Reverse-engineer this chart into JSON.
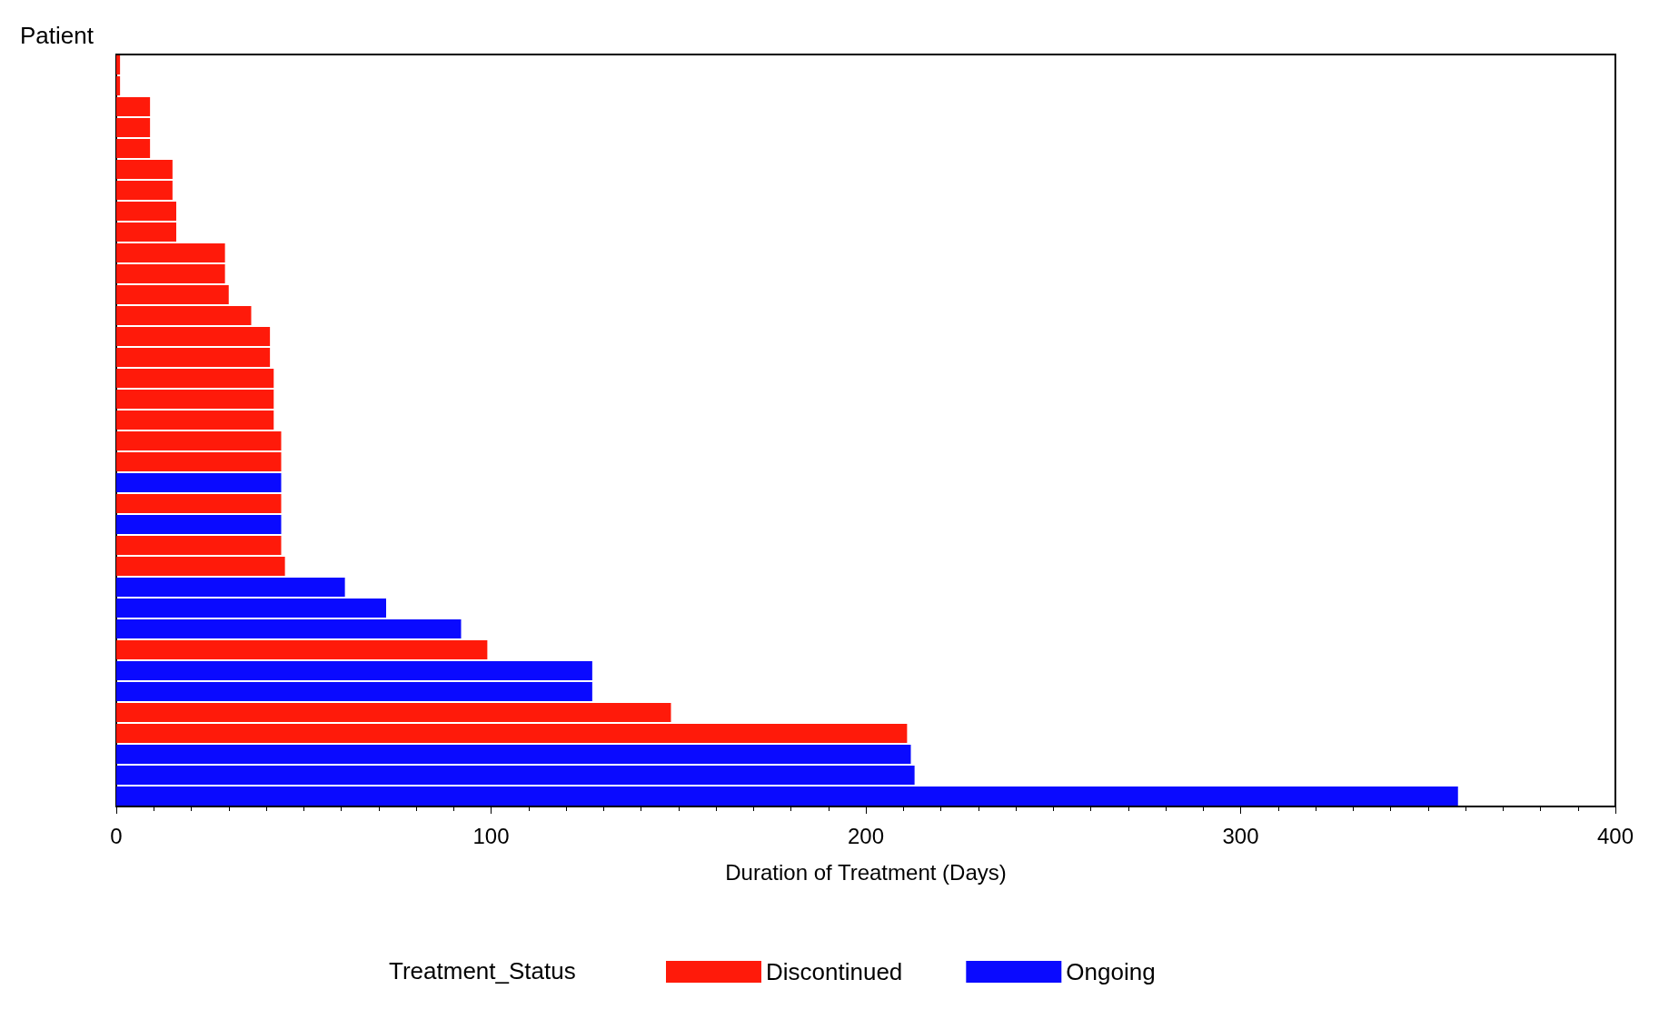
{
  "chart_data": {
    "type": "bar",
    "orientation": "horizontal",
    "stacked": true,
    "xlabel": "Duration of Treatment (Days)",
    "ylabel": "Patient",
    "legend_title": "Treatment_Status",
    "legend": "bottom",
    "grid": false,
    "categories": [
      null,
      null,
      null,
      null,
      null,
      null,
      null,
      null,
      null,
      null,
      null,
      null,
      null,
      null,
      null,
      null,
      null,
      null,
      null,
      null,
      null,
      null,
      null,
      null,
      null,
      null,
      null,
      null,
      null,
      null,
      null,
      null,
      null,
      null,
      null,
      null
    ],
    "series": [
      {
        "name": "Discontinued",
        "color": "#ff1a0a",
        "values": [
          1,
          1,
          9,
          9,
          9,
          15,
          15,
          16,
          16,
          29,
          29,
          30,
          36,
          41,
          41,
          42,
          42,
          42,
          44,
          44,
          null,
          44,
          null,
          44,
          45,
          null,
          null,
          null,
          99,
          null,
          null,
          148,
          211,
          null,
          null,
          null
        ]
      },
      {
        "name": "Ongoing",
        "color": "#0a0aff",
        "values": [
          null,
          null,
          null,
          null,
          null,
          null,
          null,
          null,
          null,
          null,
          null,
          null,
          null,
          null,
          null,
          null,
          null,
          null,
          null,
          null,
          44,
          null,
          44,
          null,
          null,
          61,
          72,
          92,
          null,
          127,
          127,
          null,
          null,
          212,
          213,
          358
        ]
      }
    ],
    "xlim": [
      0,
      400
    ],
    "xticks": [
      0,
      100,
      200,
      300,
      400
    ]
  }
}
